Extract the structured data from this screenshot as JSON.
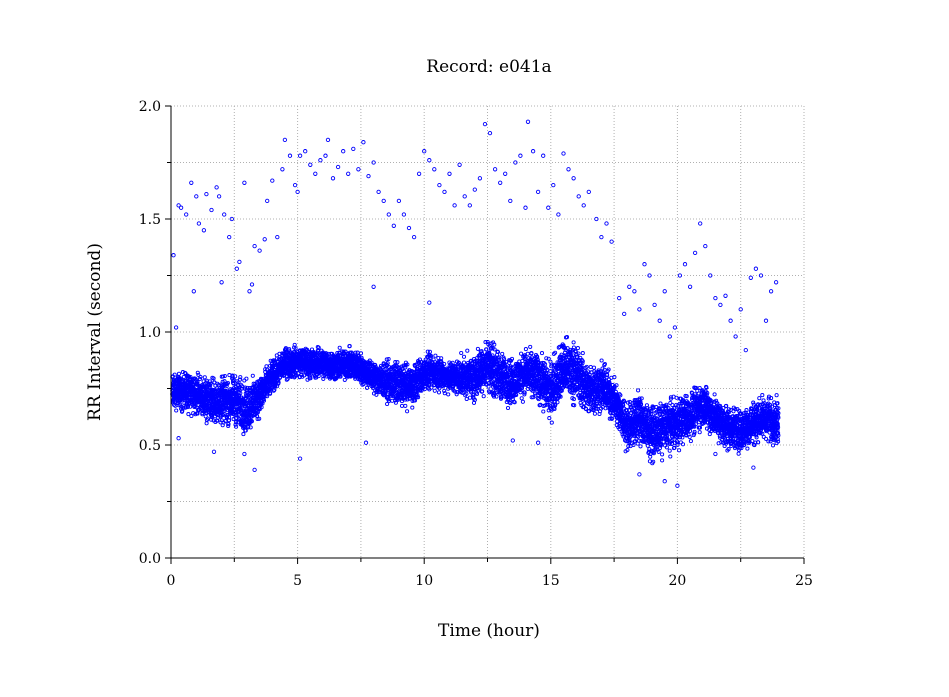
{
  "chart_data": {
    "type": "scatter",
    "title": "Record:  e041a",
    "xlabel": "Time (hour)",
    "ylabel": "RR Interval (second)",
    "xlim": [
      0,
      25
    ],
    "ylim": [
      0,
      2.0
    ],
    "xticks": [
      0,
      5,
      10,
      15,
      20,
      25
    ],
    "xtick_labels": [
      "0",
      "5",
      "10",
      "15",
      "20",
      "25"
    ],
    "yticks": [
      0.0,
      0.5,
      1.0,
      1.5,
      2.0
    ],
    "ytick_labels": [
      "0.0",
      "0.5",
      "1.0",
      "1.5",
      "2.0"
    ],
    "grid": true,
    "marker": "hollow-circle",
    "color": "#0000ff",
    "series": [
      {
        "dense_band_trend": [
          [
            0.0,
            0.74
          ],
          [
            0.5,
            0.74
          ],
          [
            1.0,
            0.72
          ],
          [
            1.5,
            0.7
          ],
          [
            2.0,
            0.69
          ],
          [
            2.5,
            0.7
          ],
          [
            3.0,
            0.66
          ],
          [
            3.5,
            0.72
          ],
          [
            4.0,
            0.8
          ],
          [
            4.5,
            0.86
          ],
          [
            5.0,
            0.87
          ],
          [
            5.5,
            0.86
          ],
          [
            6.0,
            0.86
          ],
          [
            6.5,
            0.85
          ],
          [
            7.0,
            0.86
          ],
          [
            7.5,
            0.84
          ],
          [
            8.0,
            0.8
          ],
          [
            8.5,
            0.78
          ],
          [
            9.0,
            0.77
          ],
          [
            9.5,
            0.76
          ],
          [
            10.0,
            0.82
          ],
          [
            10.5,
            0.82
          ],
          [
            11.0,
            0.8
          ],
          [
            11.5,
            0.8
          ],
          [
            12.0,
            0.8
          ],
          [
            12.5,
            0.86
          ],
          [
            13.0,
            0.8
          ],
          [
            13.5,
            0.78
          ],
          [
            14.0,
            0.82
          ],
          [
            14.5,
            0.8
          ],
          [
            15.0,
            0.74
          ],
          [
            15.5,
            0.84
          ],
          [
            16.0,
            0.82
          ],
          [
            16.5,
            0.74
          ],
          [
            17.0,
            0.76
          ],
          [
            17.5,
            0.7
          ],
          [
            18.0,
            0.58
          ],
          [
            18.5,
            0.62
          ],
          [
            19.0,
            0.55
          ],
          [
            19.5,
            0.58
          ],
          [
            20.0,
            0.6
          ],
          [
            20.5,
            0.63
          ],
          [
            21.0,
            0.68
          ],
          [
            21.5,
            0.62
          ],
          [
            22.0,
            0.58
          ],
          [
            22.5,
            0.56
          ],
          [
            23.0,
            0.6
          ],
          [
            23.5,
            0.62
          ],
          [
            24.0,
            0.6
          ]
        ],
        "dense_band_halfwidth": [
          [
            0.0,
            0.08
          ],
          [
            3.0,
            0.12
          ],
          [
            4.0,
            0.07
          ],
          [
            8.0,
            0.07
          ],
          [
            9.0,
            0.1
          ],
          [
            11.0,
            0.07
          ],
          [
            12.5,
            0.12
          ],
          [
            14.0,
            0.1
          ],
          [
            15.5,
            0.14
          ],
          [
            17.5,
            0.1
          ],
          [
            19.0,
            0.12
          ],
          [
            21.0,
            0.1
          ],
          [
            24.0,
            0.1
          ]
        ],
        "outliers": [
          [
            0.1,
            1.34
          ],
          [
            0.2,
            1.02
          ],
          [
            0.3,
            1.56
          ],
          [
            0.4,
            1.55
          ],
          [
            0.6,
            1.52
          ],
          [
            0.8,
            1.66
          ],
          [
            0.9,
            1.18
          ],
          [
            1.0,
            1.6
          ],
          [
            1.1,
            1.48
          ],
          [
            1.3,
            1.45
          ],
          [
            1.4,
            1.61
          ],
          [
            1.6,
            1.54
          ],
          [
            1.8,
            1.64
          ],
          [
            1.9,
            1.6
          ],
          [
            2.0,
            1.22
          ],
          [
            2.1,
            1.52
          ],
          [
            2.3,
            1.42
          ],
          [
            2.4,
            1.5
          ],
          [
            2.6,
            1.28
          ],
          [
            2.7,
            1.31
          ],
          [
            2.9,
            1.66
          ],
          [
            3.1,
            1.18
          ],
          [
            3.2,
            1.21
          ],
          [
            3.3,
            1.38
          ],
          [
            3.5,
            1.36
          ],
          [
            3.7,
            1.41
          ],
          [
            3.8,
            1.58
          ],
          [
            4.0,
            1.67
          ],
          [
            4.2,
            1.42
          ],
          [
            4.4,
            1.72
          ],
          [
            4.5,
            1.85
          ],
          [
            4.7,
            1.78
          ],
          [
            4.9,
            1.65
          ],
          [
            5.0,
            1.62
          ],
          [
            5.1,
            1.78
          ],
          [
            5.3,
            1.8
          ],
          [
            5.5,
            1.74
          ],
          [
            5.7,
            1.7
          ],
          [
            5.9,
            1.76
          ],
          [
            6.1,
            1.78
          ],
          [
            6.2,
            1.85
          ],
          [
            6.4,
            1.68
          ],
          [
            6.6,
            1.73
          ],
          [
            6.8,
            1.8
          ],
          [
            7.0,
            1.7
          ],
          [
            7.2,
            1.81
          ],
          [
            7.4,
            1.72
          ],
          [
            7.6,
            1.84
          ],
          [
            7.8,
            1.69
          ],
          [
            8.0,
            1.75
          ],
          [
            8.2,
            1.62
          ],
          [
            8.4,
            1.58
          ],
          [
            8.6,
            1.52
          ],
          [
            8.8,
            1.47
          ],
          [
            9.0,
            1.58
          ],
          [
            9.2,
            1.52
          ],
          [
            9.4,
            1.46
          ],
          [
            9.6,
            1.42
          ],
          [
            9.8,
            1.7
          ],
          [
            10.0,
            1.8
          ],
          [
            10.2,
            1.76
          ],
          [
            10.4,
            1.72
          ],
          [
            10.6,
            1.65
          ],
          [
            10.8,
            1.62
          ],
          [
            11.0,
            1.7
          ],
          [
            11.2,
            1.56
          ],
          [
            11.4,
            1.74
          ],
          [
            11.6,
            1.6
          ],
          [
            11.8,
            1.56
          ],
          [
            12.0,
            1.63
          ],
          [
            12.2,
            1.68
          ],
          [
            12.4,
            1.92
          ],
          [
            12.6,
            1.88
          ],
          [
            12.8,
            1.72
          ],
          [
            13.0,
            1.66
          ],
          [
            13.2,
            1.7
          ],
          [
            13.4,
            1.58
          ],
          [
            13.6,
            1.75
          ],
          [
            13.8,
            1.78
          ],
          [
            14.0,
            1.55
          ],
          [
            14.1,
            1.93
          ],
          [
            14.3,
            1.8
          ],
          [
            14.5,
            1.62
          ],
          [
            14.7,
            1.78
          ],
          [
            14.9,
            1.55
          ],
          [
            15.1,
            1.65
          ],
          [
            15.3,
            1.52
          ],
          [
            15.5,
            1.79
          ],
          [
            15.7,
            1.72
          ],
          [
            15.9,
            1.68
          ],
          [
            16.1,
            1.6
          ],
          [
            16.3,
            1.56
          ],
          [
            16.5,
            1.62
          ],
          [
            16.8,
            1.5
          ],
          [
            17.0,
            1.42
          ],
          [
            17.2,
            1.48
          ],
          [
            17.4,
            1.4
          ],
          [
            17.7,
            1.15
          ],
          [
            17.9,
            1.08
          ],
          [
            18.1,
            1.2
          ],
          [
            18.3,
            1.18
          ],
          [
            18.5,
            1.1
          ],
          [
            18.7,
            1.3
          ],
          [
            18.9,
            1.25
          ],
          [
            19.1,
            1.12
          ],
          [
            19.3,
            1.05
          ],
          [
            19.5,
            1.18
          ],
          [
            19.7,
            0.98
          ],
          [
            19.9,
            1.02
          ],
          [
            20.1,
            1.25
          ],
          [
            20.3,
            1.3
          ],
          [
            20.5,
            1.2
          ],
          [
            20.7,
            1.35
          ],
          [
            20.9,
            1.48
          ],
          [
            21.1,
            1.38
          ],
          [
            21.3,
            1.25
          ],
          [
            21.5,
            1.15
          ],
          [
            21.7,
            1.12
          ],
          [
            21.9,
            1.16
          ],
          [
            22.1,
            1.05
          ],
          [
            22.3,
            0.98
          ],
          [
            22.5,
            1.1
          ],
          [
            22.7,
            0.92
          ],
          [
            22.9,
            1.24
          ],
          [
            23.1,
            1.28
          ],
          [
            23.3,
            1.25
          ],
          [
            23.5,
            1.05
          ],
          [
            23.7,
            1.18
          ],
          [
            23.9,
            1.22
          ],
          [
            0.3,
            0.53
          ],
          [
            1.7,
            0.47
          ],
          [
            2.9,
            0.46
          ],
          [
            3.3,
            0.39
          ],
          [
            5.1,
            0.44
          ],
          [
            7.7,
            0.51
          ],
          [
            8.0,
            1.2
          ],
          [
            10.2,
            1.13
          ],
          [
            13.5,
            0.52
          ],
          [
            14.5,
            0.51
          ],
          [
            18.5,
            0.37
          ],
          [
            19.5,
            0.34
          ],
          [
            20.0,
            0.32
          ],
          [
            21.5,
            0.46
          ],
          [
            23.0,
            0.4
          ]
        ]
      }
    ]
  }
}
